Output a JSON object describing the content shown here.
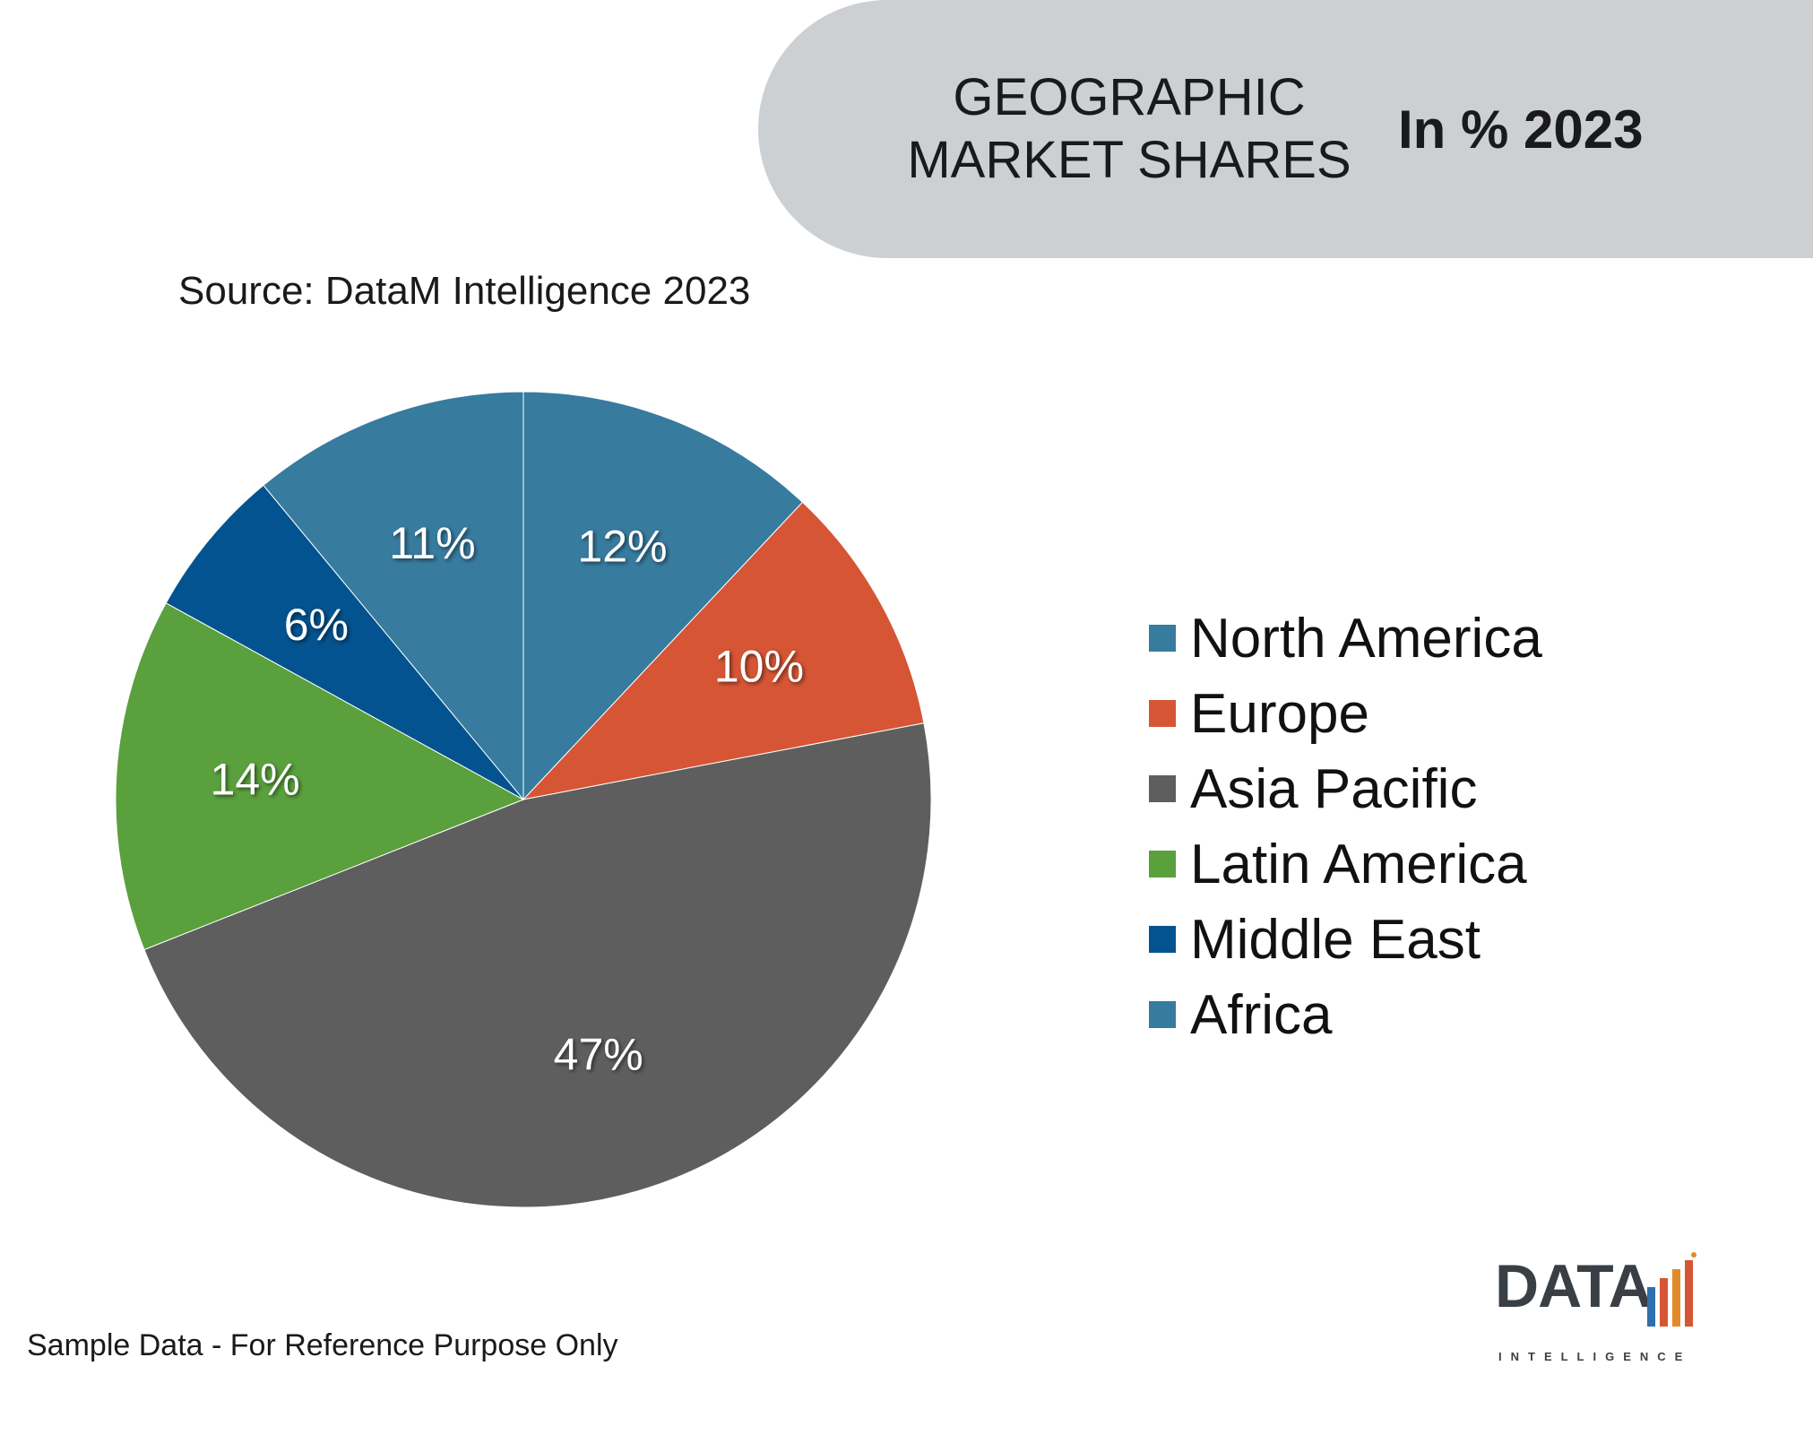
{
  "header": {
    "title_line1": "GEOGRAPHIC",
    "title_line2": "MARKET SHARES",
    "subtitle": "In % 2023"
  },
  "source": "Source: DataM Intelligence 2023",
  "footnote": "Sample Data - For Reference Purpose Only",
  "logo": {
    "word": "DATA",
    "sub": "INTELLIGENCE"
  },
  "chart_data": {
    "type": "pie",
    "title": "GEOGRAPHIC MARKET SHARES",
    "subtitle": "In % 2023",
    "categories": [
      "North America",
      "Europe",
      "Asia Pacific",
      "Latin America",
      "Middle East",
      "Africa"
    ],
    "values": [
      12,
      10,
      47,
      14,
      6,
      11
    ],
    "labels": [
      "12%",
      "10%",
      "47%",
      "14%",
      "6%",
      "11%"
    ],
    "colors": [
      "#377b9f",
      "#d65535",
      "#5e5e5e",
      "#5aa03d",
      "#02538f",
      "#377b9f"
    ],
    "legend": "right",
    "start_angle": "top, clockwise"
  }
}
